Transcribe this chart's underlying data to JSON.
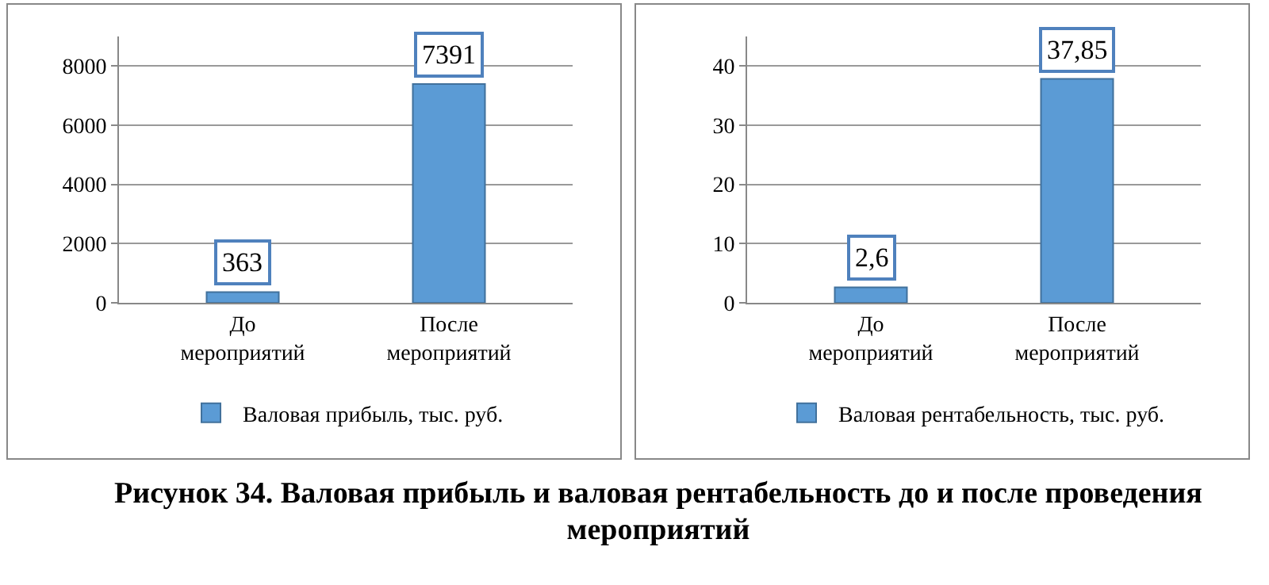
{
  "chart_data": [
    {
      "type": "bar",
      "categories": [
        "До мероприятий",
        "После мероприятий"
      ],
      "series": [
        {
          "name": "Валовая прибыль, тыс. руб.",
          "color": "#5b9bd5",
          "values": [
            363,
            7391
          ]
        }
      ],
      "ylim": [
        0,
        9000
      ],
      "yticks": [
        0,
        2000,
        4000,
        6000,
        8000
      ],
      "grid": "y",
      "legend": "bottom",
      "data_labels": true,
      "annotations": [
        "Рисунок 34. Валовая прибыль и валовая рентабельность до и после проведения мероприятий"
      ]
    },
    {
      "type": "bar",
      "categories": [
        "До мероприятий",
        "После мероприятий"
      ],
      "series": [
        {
          "name": "Валовая рентабельность, тыс. руб.",
          "color": "#5b9bd5",
          "values": [
            2.6,
            37.85
          ],
          "value_labels": [
            "2,6",
            "37,85"
          ]
        }
      ],
      "ylim": [
        0,
        45
      ],
      "yticks": [
        0,
        10,
        20,
        30,
        40
      ],
      "grid": "y",
      "legend": "bottom"
    }
  ]
}
